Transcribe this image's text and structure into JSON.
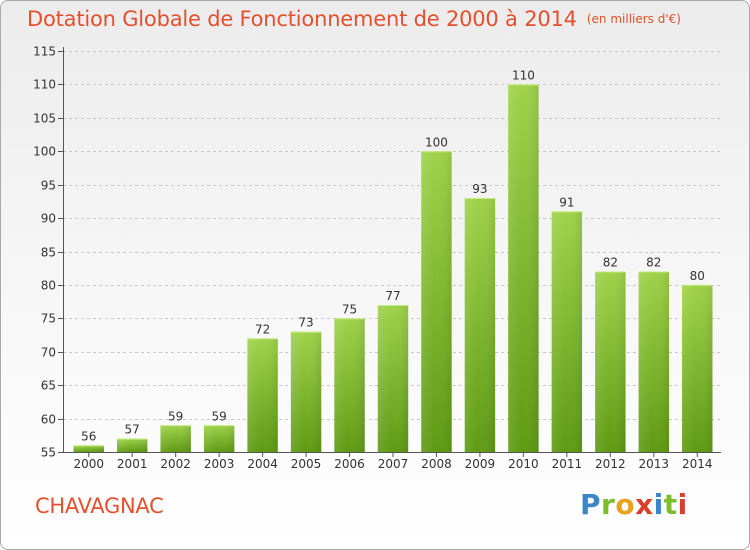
{
  "title": "Dotation Globale de Fonctionnement de 2000 à 2014",
  "unit": "(en milliers d'€)",
  "commune": "CHAVAGNAC",
  "logo": {
    "letters": [
      "P",
      "r",
      "o",
      "x",
      "i",
      "t",
      "i"
    ]
  },
  "colors": {
    "title": "#e4502e",
    "bar_top": "#9fd24a",
    "bar_bottom": "#5e9a13",
    "grid": "#c8c8c8"
  },
  "chart_data": {
    "type": "bar",
    "title": "Dotation Globale de Fonctionnement de 2000 à 2014",
    "subtitle": "(en milliers d'€)",
    "xlabel": "",
    "ylabel": "",
    "categories": [
      "2000",
      "2001",
      "2002",
      "2003",
      "2004",
      "2005",
      "2006",
      "2007",
      "2008",
      "2009",
      "2010",
      "2011",
      "2012",
      "2013",
      "2014"
    ],
    "values": [
      56,
      57,
      59,
      59,
      72,
      73,
      75,
      77,
      100,
      93,
      110,
      91,
      82,
      82,
      80
    ],
    "ylim": [
      55,
      115
    ],
    "yticks": [
      55,
      60,
      65,
      70,
      75,
      80,
      85,
      90,
      95,
      100,
      105,
      110,
      115
    ],
    "grid": true,
    "legend": "none"
  }
}
